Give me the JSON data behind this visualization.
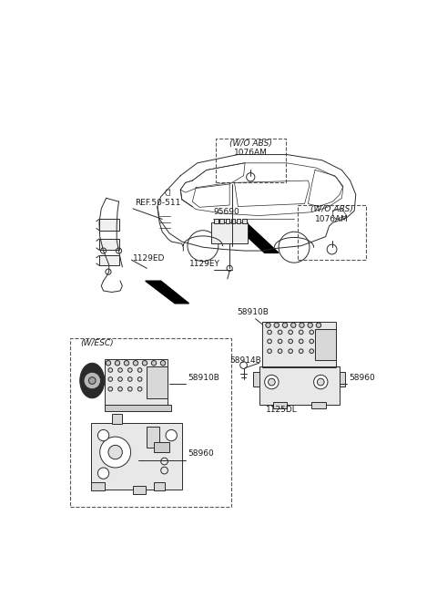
{
  "bg_color": "#ffffff",
  "fig_width": 4.8,
  "fig_height": 6.56,
  "dpi": 100,
  "line_color": "#2a2a2a",
  "text_color": "#1a1a1a",
  "font_size": 6.5,
  "labels": {
    "ref_50_511": "REF.50-511",
    "lbl_1129ED": "1129ED",
    "lbl_1129EY": "1129EY",
    "lbl_95690": "95690",
    "lbl_58914B": "58914B",
    "lbl_58910B_r": "58910B",
    "lbl_58960_r": "58960",
    "lbl_1125DL": "1125DL",
    "lbl_58910B_l": "58910B",
    "lbl_58960_l": "58960",
    "lbl_wesc": "(W/ESC)",
    "lbl_wo_abs_1": "(W/O ABS)",
    "lbl_1076AM_1": "1076AM",
    "lbl_wo_abs_2": "(W/O ABS)",
    "lbl_1076AM_2": "1076AM"
  }
}
